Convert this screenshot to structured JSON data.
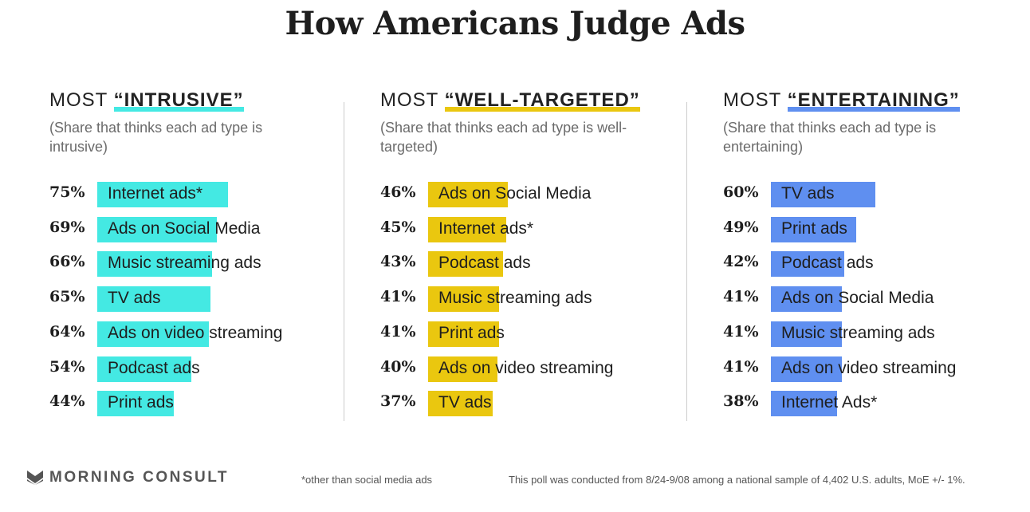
{
  "title": "How Americans Judge Ads",
  "colors": {
    "intrusive": "#44e9e3",
    "well_targeted": "#eac70f",
    "entertaining": "#5f8ff0"
  },
  "chart_data": [
    {
      "type": "bar",
      "heading_prefix": "MOST",
      "heading_highlight": "“INTRUSIVE”",
      "subtitle": "(Share that thinks each ad type is intrusive)",
      "color_key": "intrusive",
      "unit": "%",
      "categories": [
        "Internet ads*",
        "Ads on Social Media",
        "Music streaming ads",
        "TV ads",
        "Ads on video streaming",
        "Podcast ads",
        "Print ads"
      ],
      "values": [
        75,
        69,
        66,
        65,
        64,
        54,
        44
      ],
      "labels": [
        "75%",
        "69%",
        "66%",
        "65%",
        "64%",
        "54%",
        "44%"
      ]
    },
    {
      "type": "bar",
      "heading_prefix": "MOST",
      "heading_highlight": "“WELL-TARGETED”",
      "subtitle": "(Share that thinks each ad type is well-targeted)",
      "color_key": "well_targeted",
      "unit": "%",
      "categories": [
        "Ads on Social Media",
        "Internet ads*",
        "Podcast ads",
        "Music streaming ads",
        "Print ads",
        "Ads on video streaming",
        "TV ads"
      ],
      "values": [
        46,
        45,
        43,
        41,
        41,
        40,
        37
      ],
      "labels": [
        "46%",
        "45%",
        "43%",
        "41%",
        "41%",
        "40%",
        "37%"
      ]
    },
    {
      "type": "bar",
      "heading_prefix": "MOST",
      "heading_highlight": "“ENTERTAINING”",
      "subtitle": "(Share that thinks each ad type is entertaining)",
      "color_key": "entertaining",
      "unit": "%",
      "categories": [
        "TV ads",
        "Print ads",
        "Podcast ads",
        "Ads on Social Media",
        "Music streaming ads",
        "Ads on video streaming",
        "Internet Ads*"
      ],
      "values": [
        60,
        49,
        42,
        41,
        41,
        41,
        38
      ],
      "labels": [
        "60%",
        "49%",
        "42%",
        "41%",
        "41%",
        "41%",
        "38%"
      ]
    }
  ],
  "footer": {
    "brand": "MORNING CONSULT",
    "logo_icon": "morning-consult-logo-icon",
    "note": "*other than social media ads",
    "methodology": "This poll was conducted from 8/24-9/08 among a national sample of 4,402 U.S. adults, MoE +/- 1%."
  }
}
